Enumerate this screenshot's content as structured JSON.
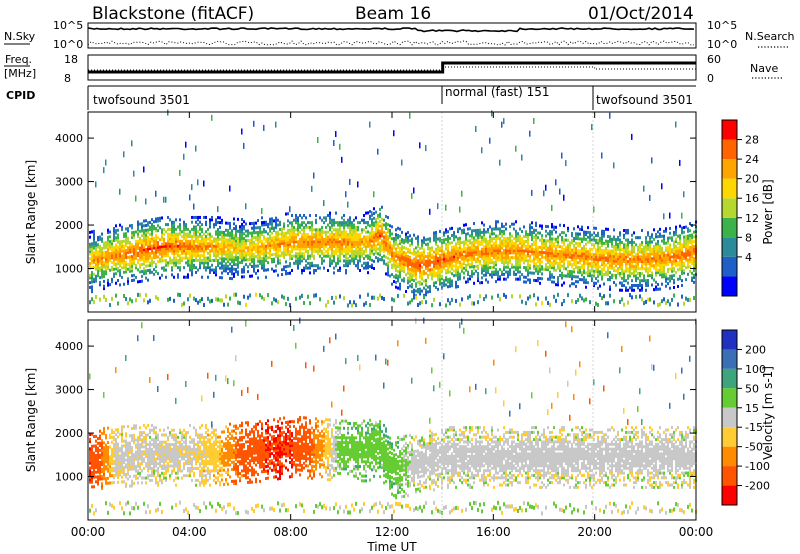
{
  "header": {
    "title": "Blackstone (fitACF)",
    "beam": "Beam 16",
    "date": "01/Oct/2014"
  },
  "panels": {
    "nsky": {
      "label": "N.Sky",
      "left_ticks": [
        "10^5",
        "10^0"
      ],
      "right_ticks": [
        "10^5",
        "10^0"
      ],
      "right_label": "N.Search"
    },
    "freq": {
      "label_line1": "Freq.",
      "label_line2": "[MHz]",
      "left_ticks": [
        "18",
        "8"
      ],
      "right_ticks": [
        "60",
        "0"
      ],
      "right_label": "Nave"
    },
    "cpid": {
      "label": "CPID",
      "segments": [
        "twofsound 3501",
        "normal (fast) 151",
        "twofsound 3501"
      ],
      "boundaries_hours": [
        0,
        14,
        20,
        24
      ]
    }
  },
  "colorbars": {
    "power": {
      "label": "Power [dB]",
      "ticks": [
        "28",
        "24",
        "20",
        "16",
        "12",
        "8",
        "4"
      ],
      "colors": [
        "#0000ff",
        "#1e5fc8",
        "#2d8a9a",
        "#3cb24b",
        "#b5d72f",
        "#ffd700",
        "#ffa500",
        "#ff6400",
        "#ff0000"
      ]
    },
    "velocity": {
      "label": "Velocity [m s-1]",
      "ticks": [
        "200",
        "100",
        "50",
        "15",
        "-15",
        "-50",
        "-100",
        "-200"
      ],
      "colors": [
        "#2030c0",
        "#3a6fb6",
        "#3da57c",
        "#66cc33",
        "#c8c8c8",
        "#ffcc33",
        "#ff8c00",
        "#ff5500",
        "#ff0000"
      ]
    }
  },
  "axes": {
    "ylabel": "Slant Range [km]",
    "yticks": [
      "4000",
      "3000",
      "2000",
      "1000"
    ],
    "xticks": [
      "00:00",
      "04:00",
      "08:00",
      "12:00",
      "16:00",
      "20:00",
      "00:00"
    ],
    "xlabel": "Time UT"
  },
  "chart_data": [
    {
      "type": "heatmap",
      "name_field": "power",
      "xlabel": "Time UT",
      "ylabel": "Slant Range [km]",
      "xlim": [
        0,
        24
      ],
      "ylim": [
        0,
        4600
      ],
      "colorbar_label": "Power [dB]",
      "colorbar_range": [
        0,
        32
      ],
      "main_echo_band": {
        "hours": [
          0,
          1,
          2,
          3,
          4,
          5,
          6,
          7,
          8,
          9,
          10,
          11,
          11.5,
          12,
          13,
          14,
          15,
          16,
          17,
          18,
          19,
          20,
          21,
          22,
          23,
          24
        ],
        "center_km": [
          1150,
          1300,
          1400,
          1500,
          1500,
          1500,
          1450,
          1500,
          1600,
          1600,
          1600,
          1600,
          1800,
          1300,
          1050,
          1200,
          1350,
          1400,
          1400,
          1350,
          1300,
          1250,
          1200,
          1200,
          1250,
          1400
        ],
        "peak_db": [
          26,
          28,
          30,
          30,
          28,
          26,
          24,
          26,
          28,
          28,
          28,
          26,
          30,
          28,
          30,
          30,
          28,
          28,
          28,
          28,
          28,
          28,
          28,
          28,
          28,
          30
        ]
      }
    },
    {
      "type": "heatmap",
      "name_field": "velocity",
      "xlabel": "Time UT",
      "ylabel": "Slant Range [km]",
      "xlim": [
        0,
        24
      ],
      "ylim": [
        0,
        4600
      ],
      "colorbar_label": "Velocity [m s-1]",
      "colorbar_range": [
        -200,
        200
      ],
      "main_echo_band": {
        "hours": [
          0,
          1,
          2,
          3,
          4,
          5,
          6,
          7,
          8,
          9,
          10,
          11,
          11.5,
          12,
          13,
          14,
          15,
          16,
          17,
          18,
          19,
          20,
          21,
          22,
          23,
          24
        ],
        "center_km": [
          1400,
          1450,
          1500,
          1500,
          1500,
          1500,
          1550,
          1600,
          1700,
          1650,
          1600,
          1600,
          1700,
          1200,
          1300,
          1450,
          1450,
          1450,
          1450,
          1450,
          1450,
          1450,
          1450,
          1450,
          1450,
          1450
        ],
        "velocity_ms": [
          -200,
          -10,
          -10,
          -10,
          -10,
          -30,
          -120,
          -200,
          -200,
          -80,
          40,
          40,
          40,
          40,
          -5,
          -5,
          -5,
          -5,
          -5,
          -5,
          -5,
          -5,
          -5,
          -5,
          -5,
          -5
        ]
      }
    }
  ]
}
